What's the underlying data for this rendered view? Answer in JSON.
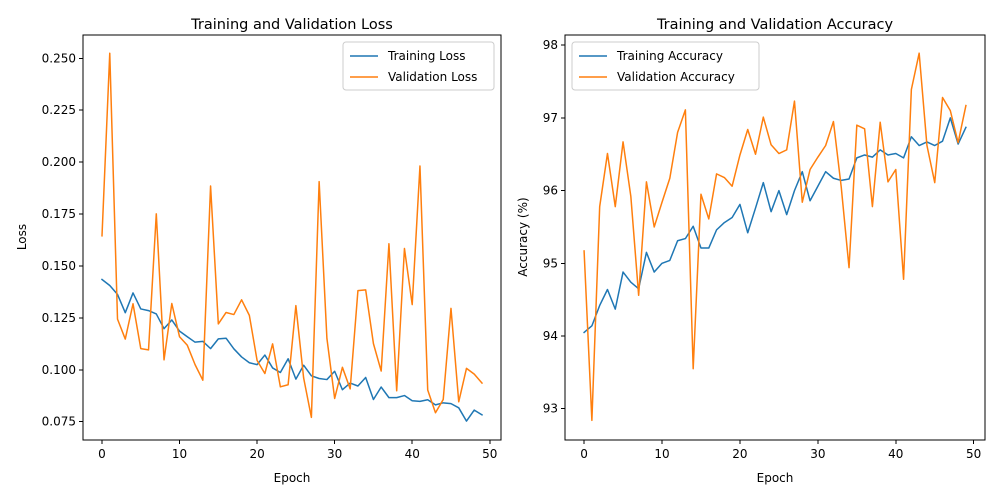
{
  "chart_data": [
    {
      "type": "line",
      "title": "Training and Validation Loss",
      "xlabel": "Epoch",
      "ylabel": "Loss",
      "xlim": [
        -2.45,
        51.45
      ],
      "ylim": [
        0.0662,
        0.2612
      ],
      "xticks": [
        0,
        10,
        20,
        30,
        40,
        50
      ],
      "xtick_labels": [
        "0",
        "10",
        "20",
        "30",
        "40",
        "50"
      ],
      "yticks": [
        0.075,
        0.1,
        0.125,
        0.15,
        0.175,
        0.2,
        0.225,
        0.25
      ],
      "ytick_labels": [
        "0.075",
        "0.100",
        "0.125",
        "0.150",
        "0.175",
        "0.200",
        "0.225",
        "0.250"
      ],
      "legend_position": "upper right",
      "grid": false,
      "series": [
        {
          "name": "Training Loss",
          "color": "#1f77b4",
          "values": [
            0.1435,
            0.1406,
            0.1363,
            0.1275,
            0.137,
            0.1293,
            0.1285,
            0.1269,
            0.1198,
            0.124,
            0.1186,
            0.1159,
            0.1133,
            0.1137,
            0.1102,
            0.1149,
            0.1152,
            0.1101,
            0.1062,
            0.1034,
            0.1025,
            0.1071,
            0.1009,
            0.0987,
            0.1053,
            0.0955,
            0.1022,
            0.0971,
            0.0958,
            0.0953,
            0.0993,
            0.0904,
            0.0936,
            0.0922,
            0.0963,
            0.0857,
            0.0917,
            0.0866,
            0.0866,
            0.0876,
            0.0851,
            0.0848,
            0.0856,
            0.0831,
            0.0841,
            0.0837,
            0.0817,
            0.0753,
            0.0806,
            0.0783
          ]
        },
        {
          "name": "Validation Loss",
          "color": "#ff7f0e",
          "values": [
            0.1645,
            0.2524,
            0.1244,
            0.1148,
            0.1318,
            0.1102,
            0.1096,
            0.1751,
            0.1048,
            0.1319,
            0.1159,
            0.1118,
            0.1025,
            0.095,
            0.1885,
            0.1221,
            0.1276,
            0.1266,
            0.1337,
            0.1262,
            0.1045,
            0.0982,
            0.1125,
            0.0918,
            0.0928,
            0.1309,
            0.0961,
            0.0771,
            0.1906,
            0.1152,
            0.0862,
            0.1012,
            0.0908,
            0.1381,
            0.1385,
            0.1126,
            0.0994,
            0.1607,
            0.0899,
            0.1584,
            0.1314,
            0.1981,
            0.0903,
            0.0793,
            0.0857,
            0.1296,
            0.0846,
            0.1007,
            0.0979,
            0.0936
          ]
        }
      ]
    },
    {
      "type": "line",
      "title": "Training and Validation Accuracy",
      "xlabel": "Epoch",
      "ylabel": "Accuracy (%)",
      "xlim": [
        -2.45,
        51.45
      ],
      "ylim": [
        92.57,
        98.14
      ],
      "xticks": [
        0,
        10,
        20,
        30,
        40,
        50
      ],
      "xtick_labels": [
        "0",
        "10",
        "20",
        "30",
        "40",
        "50"
      ],
      "yticks": [
        93,
        94,
        95,
        96,
        97,
        98
      ],
      "ytick_labels": [
        "93",
        "94",
        "95",
        "96",
        "97",
        "98"
      ],
      "legend_position": "upper left",
      "grid": false,
      "series": [
        {
          "name": "Training Accuracy",
          "color": "#1f77b4",
          "values": [
            94.05,
            94.14,
            94.42,
            94.64,
            94.37,
            94.88,
            94.74,
            94.65,
            95.15,
            94.88,
            95.0,
            95.04,
            95.31,
            95.34,
            95.51,
            95.21,
            95.21,
            95.46,
            95.56,
            95.63,
            95.81,
            95.42,
            95.76,
            96.11,
            95.71,
            96.0,
            95.67,
            96.0,
            96.26,
            95.86,
            96.06,
            96.26,
            96.17,
            96.14,
            96.16,
            96.45,
            96.49,
            96.46,
            96.56,
            96.49,
            96.51,
            96.45,
            96.74,
            96.62,
            96.67,
            96.62,
            96.68,
            97.0,
            96.64,
            96.87
          ]
        },
        {
          "name": "Validation Accuracy",
          "color": "#ff7f0e",
          "values": [
            95.17,
            92.84,
            95.78,
            96.51,
            95.78,
            96.67,
            95.92,
            94.56,
            96.12,
            95.5,
            95.84,
            96.17,
            96.8,
            97.11,
            93.55,
            95.95,
            95.61,
            96.23,
            96.18,
            96.06,
            96.49,
            96.84,
            96.5,
            97.01,
            96.63,
            96.51,
            96.56,
            97.23,
            95.84,
            96.29,
            96.46,
            96.62,
            96.95,
            96.05,
            94.94,
            96.9,
            96.85,
            95.78,
            96.94,
            96.12,
            96.29,
            94.78,
            97.39,
            97.89,
            96.62,
            96.11,
            97.28,
            97.1,
            96.66,
            97.17
          ]
        }
      ]
    }
  ]
}
